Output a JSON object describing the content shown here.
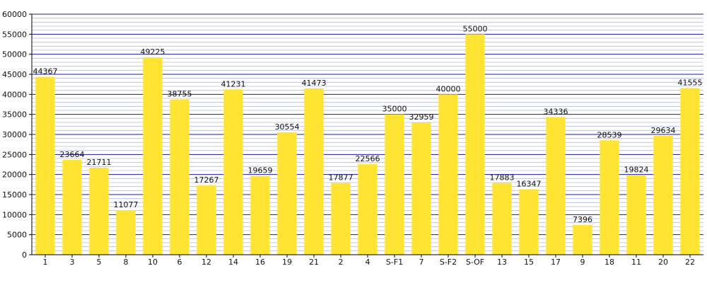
{
  "chart_data": {
    "type": "bar",
    "title": "",
    "xlabel": "",
    "ylabel": "",
    "ylim": [
      0,
      60000
    ],
    "y_ticks": [
      0,
      5000,
      10000,
      15000,
      20000,
      25000,
      30000,
      35000,
      40000,
      45000,
      50000,
      55000,
      60000
    ],
    "grid": true,
    "legend": "none",
    "categories": [
      "1",
      "3",
      "5",
      "8",
      "10",
      "6",
      "12",
      "14",
      "16",
      "19",
      "21",
      "2",
      "4",
      "S-F1",
      "7",
      "S-F2",
      "S-OF",
      "13",
      "15",
      "17",
      "9",
      "18",
      "11",
      "20",
      "22"
    ],
    "values": [
      44367,
      23664,
      21711,
      11077,
      49225,
      38755,
      17267,
      41231,
      19659,
      30554,
      41473,
      17877,
      22566,
      35000,
      32959,
      40000,
      55000,
      17883,
      16347,
      34336,
      7396,
      28539,
      19824,
      29634,
      41555
    ],
    "colors": {
      "bar": "#ffe433",
      "major_grid": "#1a1aa0",
      "minor_grid": "#b8bcd8",
      "axis": "#000000"
    }
  }
}
